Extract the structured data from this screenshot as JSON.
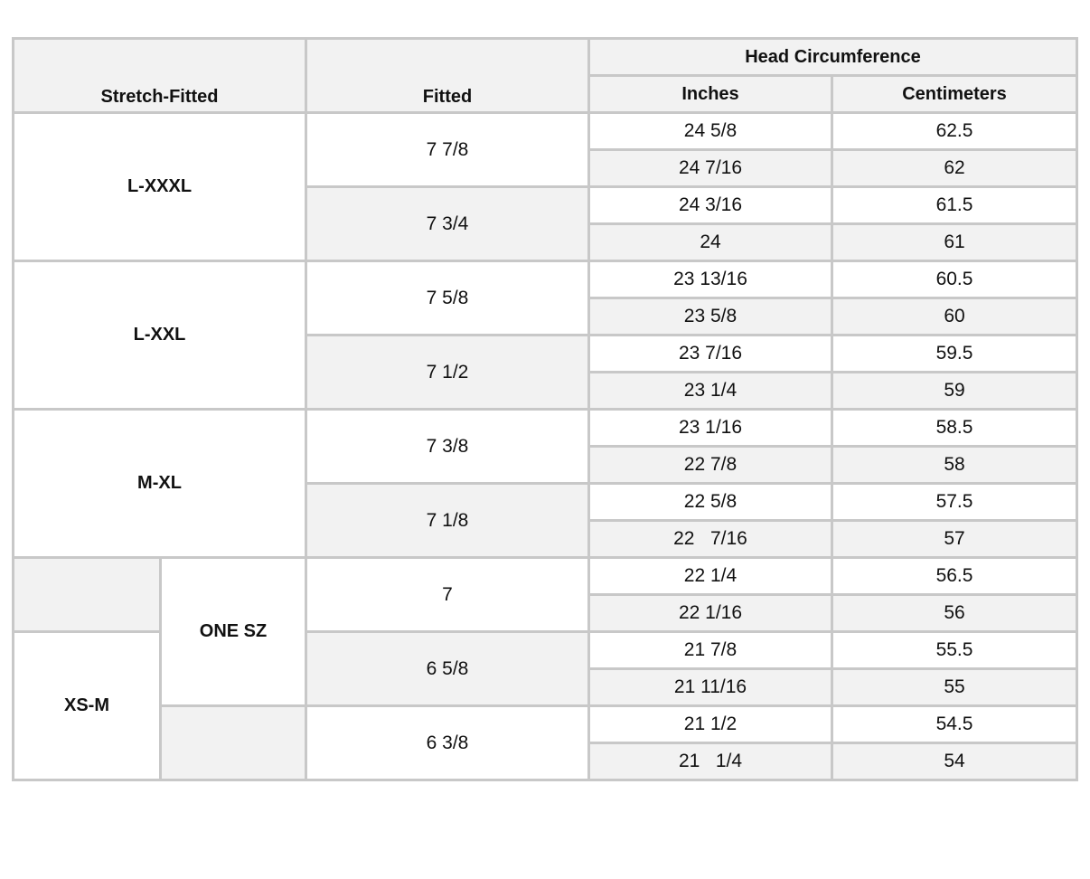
{
  "header": {
    "stretch_fitted": "Stretch-Fitted",
    "fitted": "Fitted",
    "head_circumference": "Head Circumference",
    "inches": "Inches",
    "centimeters": "Centimeters"
  },
  "stretch_groups": [
    "L-XXXL",
    "L-XXL",
    "M-XL",
    "ONE SZ",
    "XS-M"
  ],
  "fitted": [
    "7 7/8",
    "7 3/4",
    "7 5/8",
    "7 1/2",
    "7 3/8",
    "7 1/8",
    "7",
    "6 5/8",
    "6 3/8"
  ],
  "rows": [
    {
      "in": "24 5/8",
      "cm": "62.5"
    },
    {
      "in": "24 7/16",
      "cm": "62"
    },
    {
      "in": "24 3/16",
      "cm": "61.5"
    },
    {
      "in": "24",
      "cm": "61"
    },
    {
      "in": "23 13/16",
      "cm": "60.5"
    },
    {
      "in": "23 5/8",
      "cm": "60"
    },
    {
      "in": "23 7/16",
      "cm": "59.5"
    },
    {
      "in": "23 1/4",
      "cm": "59"
    },
    {
      "in": "23 1/16",
      "cm": "58.5"
    },
    {
      "in": "22 7/8",
      "cm": "58"
    },
    {
      "in": "22 5/8",
      "cm": "57.5"
    },
    {
      "in": "22   7/16",
      "cm": "57"
    },
    {
      "in": "22 1/4",
      "cm": "56.5"
    },
    {
      "in": "22 1/16",
      "cm": "56"
    },
    {
      "in": "21 7/8",
      "cm": "55.5"
    },
    {
      "in": "21 11/16",
      "cm": "55"
    },
    {
      "in": "21 1/2",
      "cm": "54.5"
    },
    {
      "in": "21   1/4",
      "cm": "54"
    }
  ]
}
